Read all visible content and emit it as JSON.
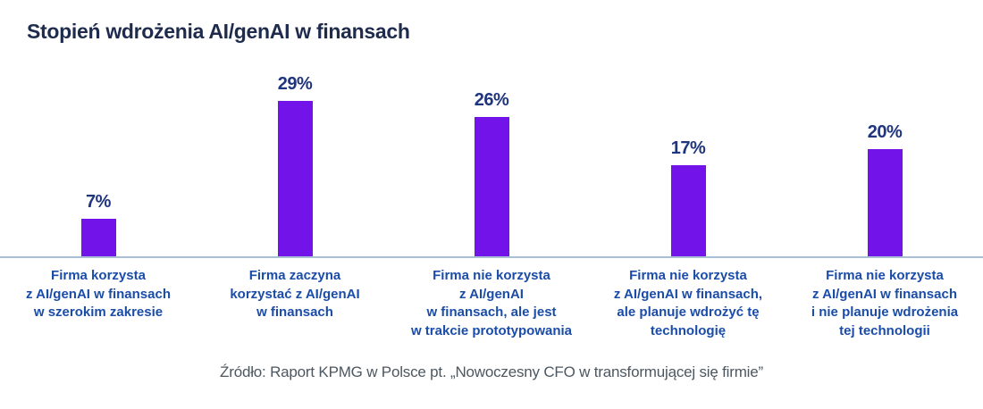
{
  "page": {
    "title": "Stopień wdrożenia AI/genAI w finansach",
    "source": "Źródło: Raport KPMG w Polsce pt. „Nowoczesny CFO w transformującej się firmie”"
  },
  "colors": {
    "bar": "#7213EA",
    "title_text": "#1E2B4D",
    "value_label_text": "#1F357E",
    "category_label_text": "#1A4CA8",
    "axis_line": "#A9BFD8",
    "source_text": "#4D5760",
    "background": "#FFFFFF"
  },
  "chart_data": {
    "type": "bar",
    "title": "Stopień wdrożenia AI/genAI w finansach",
    "categories": [
      "Firma korzysta\nz AI/genAI w finansach\nw szerokim zakresie",
      "Firma zaczyna\nkorzystać z AI/genAI\nw finansach",
      "Firma nie korzysta\nz AI/genAI\nw finansach, ale jest\nw trakcie prototypowania",
      "Firma nie korzysta\nz AI/genAI w finansach,\nale planuje wdrożyć tę\ntechnologię",
      "Firma nie korzysta\nz AI/genAI w finansach\ni nie planuje wdrożenia\ntej technologii"
    ],
    "values": [
      7,
      29,
      26,
      17,
      20
    ],
    "value_labels": [
      "7%",
      "29%",
      "26%",
      "17%",
      "20%"
    ],
    "xlabel": "",
    "ylabel": "",
    "ylim": [
      0,
      32
    ],
    "grid": false,
    "legend": null,
    "bar_color": "#7213EA",
    "annotation": "Źródło: Raport KPMG w Polsce pt. „Nowoczesny CFO w transformującej się firmie”"
  }
}
